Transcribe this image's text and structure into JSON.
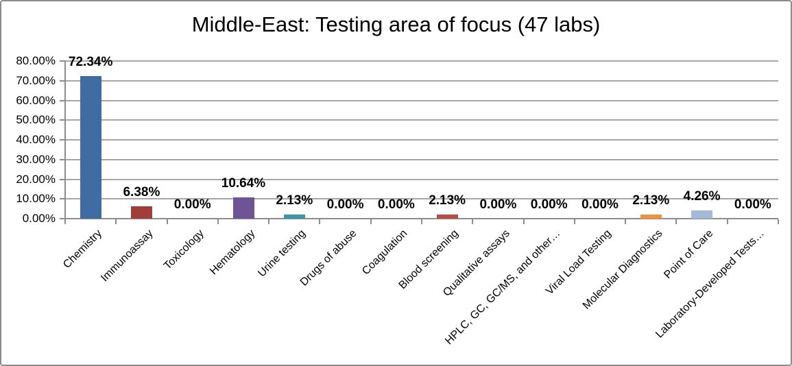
{
  "frame": {
    "border_color": "#8c8c8c",
    "background_color": "#ffffff"
  },
  "chart_data": {
    "type": "bar",
    "title": "Middle-East: Testing area of focus (47 labs)",
    "categories": [
      "Chemistry",
      "Immunoassay",
      "Toxicology",
      "Hematology",
      "Urine testing",
      "Drugs of abuse",
      "Coagulation",
      "Blood screening",
      "Qualitative assays",
      "HPLC, GC, GC/MS, and other…",
      "Viral Load Testing",
      "Molecular Diagnostics",
      "Point of Care",
      "Laboratory-Developed Tests…"
    ],
    "values": [
      72.34,
      6.38,
      0,
      10.64,
      2.13,
      0,
      0,
      2.13,
      0,
      0,
      0,
      2.13,
      4.26,
      0
    ],
    "value_labels": [
      "72.34%",
      "6.38%",
      "0.00%",
      "10.64%",
      "2.13%",
      "0.00%",
      "0.00%",
      "2.13%",
      "0.00%",
      "0.00%",
      "0.00%",
      "2.13%",
      "4.26%",
      "0.00%"
    ],
    "bar_colors": [
      "#3E6CA3",
      "#A23E3A",
      "#89A54E",
      "#6E5494",
      "#3C96A8",
      "#DB843D",
      "#2C4D75",
      "#BB4A45",
      "#622F2D",
      "#4E6B32",
      "#503E6B",
      "#F0913D",
      "#A4B9DA",
      "#8DA9D0"
    ],
    "y_ticks": [
      "0.00%",
      "10.00%",
      "20.00%",
      "30.00%",
      "40.00%",
      "50.00%",
      "60.00%",
      "70.00%",
      "80.00%"
    ],
    "ylim": [
      0,
      80
    ],
    "y_step": 10,
    "xlabel": "",
    "ylabel": "",
    "grid": true,
    "legend": "none",
    "colors": {
      "gridline": "#a6a6a6",
      "axis": "#8c8c8c",
      "text": "#000000"
    }
  }
}
